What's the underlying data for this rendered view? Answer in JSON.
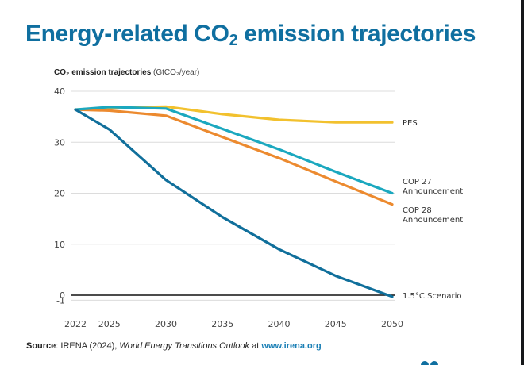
{
  "chart_data": {
    "type": "line",
    "title": "Energy-related CO2 emission trajectories",
    "ylabel": "CO2 emission trajectories (GtCO2/year)",
    "xlabel": "",
    "x": [
      2022,
      2025,
      2030,
      2035,
      2040,
      2045,
      2050
    ],
    "xticks": [
      "2022",
      "2025",
      "2030",
      "2035",
      "2040",
      "2045",
      "2050"
    ],
    "yticks": [
      "40",
      "30",
      "20",
      "10",
      "0",
      "-1"
    ],
    "ytick_values": [
      40,
      30,
      20,
      10,
      0,
      -1
    ],
    "ylim": [
      -1,
      40
    ],
    "xlim": [
      2022,
      2050
    ],
    "grid": true,
    "zero_line": true,
    "legend": "right-inline-labels",
    "series": [
      {
        "name": "PES",
        "color": "#f2c12e",
        "values": [
          36.4,
          36.8,
          37.0,
          35.5,
          34.4,
          33.9,
          33.9
        ]
      },
      {
        "name": "COP 27 Announcement",
        "color": "#1ba8bf",
        "values": [
          36.4,
          36.9,
          36.6,
          32.6,
          28.6,
          24.2,
          20.0
        ]
      },
      {
        "name": "COP 28 Announcement",
        "color": "#ec8a2f",
        "values": [
          36.4,
          36.2,
          35.2,
          31.0,
          26.9,
          22.3,
          17.8
        ]
      },
      {
        "name": "1.5°C Scenario",
        "color": "#106f9b",
        "values": [
          36.4,
          32.5,
          22.6,
          15.3,
          9.0,
          3.8,
          -0.3
        ]
      }
    ],
    "series_labels": [
      {
        "lines": [
          "PES"
        ]
      },
      {
        "lines": [
          "COP 27",
          "Announcement"
        ]
      },
      {
        "lines": [
          "COP 28",
          "Announcement"
        ]
      },
      {
        "lines": [
          "1.5°C Scenario"
        ]
      }
    ]
  },
  "header": {
    "title_main": "Energy-related CO",
    "title_sub": "2",
    "title_rest": " emission trajectories"
  },
  "axis_label": {
    "bold": "CO₂ emission trajectories",
    "rest": " (GtCO₂/year)"
  },
  "source": {
    "key": "Source",
    "text": ": IRENA (2024), ",
    "title": "World Energy Transitions Outlook",
    "at": " at ",
    "link": "www.irena.org"
  },
  "colors": {
    "title": "#0f6fa0",
    "link": "#1a7fb5",
    "grid": "#dcdcdc",
    "zero_line": "#111111"
  }
}
